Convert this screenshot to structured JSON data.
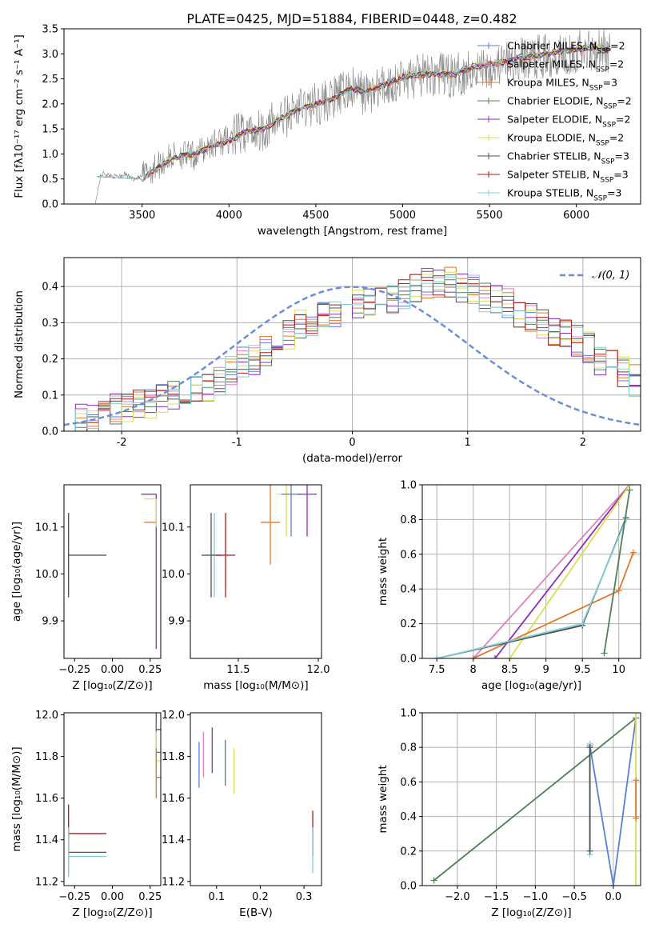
{
  "figure": {
    "title": "PLATE=0425, MJD=51884, FIBERID=0448, z=0.482"
  },
  "colors": {
    "c_miles": "#5a7fd6",
    "s_miles": "#e080c0",
    "k_miles": "#e07828",
    "c_elodie": "#508058",
    "s_elodie": "#8c2cc0",
    "k_elodie": "#d8e050",
    "c_stelib": "#505050",
    "s_stelib": "#b01818",
    "k_stelib": "#80d0d8",
    "data": "#808080",
    "normal": "#6a8fd8",
    "grid": "#b0b0b0"
  },
  "chart_data": [
    {
      "id": "spectrum",
      "type": "line",
      "title": "PLATE=0425, MJD=51884, FIBERID=0448, z=0.482",
      "xlabel": "wavelength [Angstrom, rest frame]",
      "ylabel": "Flux [fλ10⁻¹⁷ erg cm⁻² s⁻¹ A⁻¹]",
      "xlim": [
        3050,
        6370
      ],
      "ylim": [
        0,
        3.5
      ],
      "xticks": [
        3500,
        4000,
        4500,
        5000,
        5500,
        6000
      ],
      "yticks": [
        0.0,
        0.5,
        1.0,
        1.5,
        2.0,
        2.5,
        3.0,
        3.5
      ],
      "legend_position": "top-right",
      "data_series": {
        "name": "data",
        "x": [
          3230,
          3260,
          3280,
          3300,
          3350,
          3400,
          3450,
          3500,
          3600,
          3700,
          3800,
          3900,
          4000,
          4100,
          4200,
          4300,
          4400,
          4500,
          4600,
          4700,
          4800,
          4900,
          5000,
          5100,
          5200,
          5300,
          5400,
          5500,
          5600,
          5700,
          5800,
          5900,
          6000,
          6100,
          6200
        ],
        "y": [
          0.0,
          0.55,
          0.62,
          0.58,
          0.55,
          0.6,
          0.5,
          0.55,
          0.8,
          1.0,
          0.95,
          1.2,
          1.3,
          1.45,
          1.5,
          1.7,
          1.9,
          2.0,
          2.1,
          2.3,
          2.2,
          2.35,
          2.5,
          2.55,
          2.6,
          2.55,
          2.7,
          2.75,
          2.8,
          2.9,
          2.95,
          3.0,
          3.05,
          3.1,
          3.05
        ]
      },
      "model_x": [
        3240,
        3500,
        3600,
        3700,
        3800,
        3900,
        4000,
        4100,
        4200,
        4300,
        4400,
        4500,
        4600,
        4700,
        4800,
        4900,
        5000,
        5100,
        5200,
        5300,
        5400,
        5500,
        5600,
        5700,
        5800,
        5900,
        6000,
        6100,
        6200
      ],
      "series": [
        {
          "name": "Chabrier MILES, N_SSP=2",
          "values": [
            0.55,
            0.5,
            0.75,
            0.95,
            1.0,
            1.15,
            1.25,
            1.45,
            1.5,
            1.7,
            1.9,
            2.0,
            2.1,
            2.3,
            2.25,
            2.4,
            2.55,
            2.6,
            2.6,
            2.6,
            2.75,
            2.8,
            2.85,
            2.95,
            3.0,
            3.05,
            3.1,
            3.15,
            3.1
          ]
        },
        {
          "name": "Salpeter MILES, N_SSP=2",
          "values": [
            0.55,
            0.5,
            0.76,
            0.95,
            1.0,
            1.15,
            1.26,
            1.46,
            1.5,
            1.7,
            1.9,
            2.0,
            2.1,
            2.3,
            2.25,
            2.38,
            2.52,
            2.58,
            2.58,
            2.57,
            2.72,
            2.77,
            2.82,
            2.92,
            2.98,
            3.02,
            3.07,
            3.12,
            3.07
          ]
        },
        {
          "name": "Kroupa MILES, N_SSP=3",
          "values": [
            0.55,
            0.5,
            0.74,
            0.94,
            0.99,
            1.14,
            1.24,
            1.44,
            1.49,
            1.69,
            1.89,
            1.99,
            2.09,
            2.29,
            2.24,
            2.37,
            2.51,
            2.57,
            2.57,
            2.56,
            2.71,
            2.76,
            2.81,
            2.91,
            2.97,
            3.01,
            3.06,
            3.11,
            3.06
          ]
        },
        {
          "name": "Chabrier ELODIE, N_SSP=2",
          "values": [
            0.55,
            0.5,
            0.76,
            0.95,
            1.0,
            1.15,
            1.25,
            1.45,
            1.5,
            1.7,
            1.9,
            2.0,
            2.1,
            2.3,
            2.25,
            2.4,
            2.55,
            2.6,
            2.6,
            2.6,
            2.75,
            2.8,
            2.85,
            2.95,
            3.0,
            3.05,
            3.1,
            3.15,
            3.1
          ]
        },
        {
          "name": "Salpeter ELODIE, N_SSP=2",
          "values": [
            0.55,
            0.5,
            0.77,
            0.96,
            1.01,
            1.16,
            1.26,
            1.46,
            1.51,
            1.71,
            1.91,
            2.01,
            2.11,
            2.31,
            2.26,
            2.41,
            2.56,
            2.61,
            2.61,
            2.61,
            2.76,
            2.81,
            2.86,
            2.96,
            3.01,
            3.06,
            3.11,
            3.16,
            3.11
          ]
        },
        {
          "name": "Kroupa ELODIE, N_SSP=2",
          "values": [
            0.55,
            0.5,
            0.78,
            0.97,
            1.02,
            1.17,
            1.27,
            1.47,
            1.52,
            1.72,
            1.92,
            2.02,
            2.12,
            2.32,
            2.27,
            2.42,
            2.57,
            2.62,
            2.62,
            2.62,
            2.77,
            2.82,
            2.87,
            2.97,
            3.02,
            3.07,
            3.12,
            3.17,
            3.12
          ]
        },
        {
          "name": "Chabrier STELIB, N_SSP=3",
          "values": [
            0.55,
            0.5,
            0.75,
            0.95,
            1.0,
            1.15,
            1.25,
            1.45,
            1.5,
            1.7,
            1.9,
            2.0,
            2.1,
            2.3,
            2.25,
            2.38,
            2.53,
            2.58,
            2.58,
            2.58,
            2.73,
            2.78,
            2.83,
            2.93,
            2.98,
            3.03,
            3.08,
            3.13,
            3.08
          ]
        },
        {
          "name": "Salpeter STELIB, N_SSP=3",
          "values": [
            0.55,
            0.5,
            0.75,
            0.95,
            1.0,
            1.15,
            1.25,
            1.45,
            1.5,
            1.7,
            1.9,
            2.0,
            2.1,
            2.3,
            2.25,
            2.38,
            2.53,
            2.58,
            2.58,
            2.58,
            2.73,
            2.78,
            2.83,
            2.93,
            2.98,
            3.03,
            3.08,
            3.13,
            3.08
          ]
        },
        {
          "name": "Kroupa STELIB, N_SSP=3",
          "values": [
            0.55,
            0.5,
            0.75,
            0.95,
            1.0,
            1.15,
            1.25,
            1.45,
            1.5,
            1.7,
            1.9,
            2.0,
            2.1,
            2.3,
            2.25,
            2.38,
            2.53,
            2.58,
            2.58,
            2.58,
            2.73,
            2.78,
            2.83,
            2.93,
            2.98,
            3.03,
            3.08,
            3.13,
            3.08
          ]
        }
      ]
    },
    {
      "id": "residuals",
      "type": "bar",
      "xlabel": "(data-model)/error",
      "ylabel": "Normed distribution",
      "xlim": [
        -2.5,
        2.5
      ],
      "ylim": [
        0,
        0.48
      ],
      "xticks": [
        -2,
        -1,
        0,
        1,
        2
      ],
      "yticks": [
        0.0,
        0.1,
        0.2,
        0.3,
        0.4
      ],
      "grid": true,
      "legend_position": "top-right",
      "reference_curve": {
        "name": "𝒩(0, 1)",
        "mean": 0,
        "sigma": 1
      },
      "bin_width": 0.1,
      "bin_start": -2.5,
      "histogram_values": [
        0.02,
        0.03,
        0.04,
        0.05,
        0.06,
        0.06,
        0.07,
        0.08,
        0.09,
        0.1,
        0.1,
        0.11,
        0.12,
        0.14,
        0.17,
        0.19,
        0.2,
        0.22,
        0.25,
        0.27,
        0.3,
        0.3,
        0.32,
        0.33,
        0.34,
        0.35,
        0.35,
        0.36,
        0.37,
        0.38,
        0.4,
        0.41,
        0.41,
        0.41,
        0.4,
        0.39,
        0.37,
        0.36,
        0.35,
        0.33,
        0.31,
        0.3,
        0.28,
        0.27,
        0.25,
        0.23,
        0.2,
        0.18,
        0.16,
        0.14,
        0.12,
        0.11,
        0.09,
        0.08,
        0.07,
        0.06,
        0.05,
        0.05,
        0.04,
        0.04
      ]
    },
    {
      "id": "age-vs-Z",
      "type": "scatter",
      "xlabel": "Z [log₁₀(Z/Z⊙)]",
      "ylabel": "age  [log₁₀(age/yr)]",
      "xlim": [
        -0.32,
        0.32
      ],
      "ylim": [
        9.82,
        10.19
      ],
      "xticks": [
        -0.25,
        0.0,
        0.25
      ],
      "xticklabels": [
        "−0.25",
        "0.00",
        "0.25"
      ],
      "yticks": [
        9.9,
        10.0,
        10.1
      ],
      "points": [
        {
          "x": -0.29,
          "y": 10.04,
          "xerr": [
            0,
            0.25
          ],
          "yerr": [
            0.09,
            0.09
          ],
          "c": "k_stelib"
        },
        {
          "x": -0.29,
          "y": 10.04,
          "xerr": [
            0,
            0.25
          ],
          "yerr": [
            0.09,
            0.09
          ],
          "c": "c_stelib"
        },
        {
          "x": 0.29,
          "y": 10.17,
          "xerr": [
            0.1,
            0
          ],
          "yerr": [
            0.0,
            0.0
          ],
          "c": "s_miles"
        },
        {
          "x": 0.29,
          "y": 10.11,
          "xerr": [
            0.08,
            0
          ],
          "yerr": [
            0.0,
            0.0
          ],
          "c": "k_miles"
        },
        {
          "x": 0.29,
          "y": 10.17,
          "xerr": [
            0.1,
            0
          ],
          "yerr": [
            0.33,
            0.0
          ],
          "c": "s_elodie"
        },
        {
          "x": 0.29,
          "y": 10.16,
          "xerr": [
            0.08,
            0
          ],
          "yerr": [
            0.06,
            0.0
          ],
          "c": "k_elodie"
        }
      ]
    },
    {
      "id": "age-vs-mass",
      "type": "scatter",
      "xlabel": "mass [log₁₀(M/M⊙)]",
      "xlim": [
        11.2,
        12.02
      ],
      "ylim": [
        9.82,
        10.19
      ],
      "xticks": [
        11.5,
        12.0
      ],
      "xticklabels": [
        "11.5",
        "12.0"
      ],
      "yticks": [
        9.9,
        10.0,
        10.1
      ],
      "points": [
        {
          "x": 11.35,
          "y": 10.04,
          "c": "k_stelib"
        },
        {
          "x": 11.33,
          "y": 10.04,
          "c": "c_stelib"
        },
        {
          "x": 11.42,
          "y": 10.04,
          "c": "s_stelib"
        },
        {
          "x": 11.7,
          "y": 10.11,
          "c": "k_miles"
        },
        {
          "x": 11.8,
          "y": 10.17,
          "c": "k_elodie"
        },
        {
          "x": 11.83,
          "y": 10.17,
          "c": "c_miles"
        },
        {
          "x": 11.93,
          "y": 10.17,
          "c": "s_elodie"
        }
      ]
    },
    {
      "id": "weight-vs-age",
      "type": "line",
      "xlabel": "age  [log₁₀(age/yr)]",
      "ylabel": "mass weight",
      "xlim": [
        7.3,
        10.3
      ],
      "ylim": [
        0,
        1
      ],
      "xticks": [
        7.5,
        8.0,
        8.5,
        9.0,
        9.5,
        10.0
      ],
      "yticks": [
        0.0,
        0.2,
        0.4,
        0.6,
        0.8,
        1.0
      ],
      "grid": true,
      "series": [
        {
          "c": "s_miles",
          "x": [
            8.0,
            10.15
          ],
          "y": [
            0.0,
            1.0
          ]
        },
        {
          "c": "s_elodie",
          "x": [
            8.3,
            10.15
          ],
          "y": [
            0.0,
            1.0
          ]
        },
        {
          "c": "k_elodie",
          "x": [
            8.5,
            10.15
          ],
          "y": [
            0.0,
            1.0
          ]
        },
        {
          "c": "k_miles",
          "x": [
            8.0,
            10.0,
            10.2
          ],
          "y": [
            0.0,
            0.39,
            0.61
          ]
        },
        {
          "c": "c_stelib",
          "x": [
            7.5,
            9.5,
            10.1
          ],
          "y": [
            0.0,
            0.19,
            0.81
          ]
        },
        {
          "c": "k_stelib",
          "x": [
            7.5,
            9.5,
            10.1
          ],
          "y": [
            0.0,
            0.2,
            0.8
          ]
        },
        {
          "c": "c_elodie",
          "x": [
            9.8,
            10.15
          ],
          "y": [
            0.03,
            0.97
          ]
        }
      ]
    },
    {
      "id": "mass-vs-Z",
      "type": "scatter",
      "xlabel": "Z [log₁₀(Z/Z⊙)]",
      "ylabel": "mass [log₁₀(M/M⊙)]",
      "xlim": [
        -0.32,
        0.32
      ],
      "ylim": [
        11.18,
        12.01
      ],
      "xticks": [
        -0.25,
        0.0,
        0.25
      ],
      "xticklabels": [
        "−0.25",
        "0.00",
        "0.25"
      ],
      "yticks": [
        11.2,
        11.4,
        11.6,
        11.8,
        12.0
      ],
      "points": [
        {
          "x": -0.29,
          "y": 11.43,
          "c": "s_stelib"
        },
        {
          "x": -0.29,
          "y": 11.34,
          "c": "c_stelib"
        },
        {
          "x": -0.29,
          "y": 11.32,
          "c": "k_stelib"
        },
        {
          "x": 0.29,
          "y": 11.93,
          "c": "s_elodie"
        },
        {
          "x": 0.29,
          "y": 11.82,
          "c": "c_elodie"
        },
        {
          "x": 0.29,
          "y": 11.78,
          "c": "k_elodie"
        },
        {
          "x": 0.29,
          "y": 11.7,
          "c": "k_miles"
        }
      ]
    },
    {
      "id": "mass-vs-ebv",
      "type": "scatter",
      "xlabel": "E(B-V)",
      "xlim": [
        0.04,
        0.34
      ],
      "ylim": [
        11.18,
        12.01
      ],
      "xticks": [
        0.1,
        0.2,
        0.3
      ],
      "xticklabels": [
        "0.1",
        "0.2",
        "0.3"
      ],
      "yticks": [
        11.2,
        11.4,
        11.6,
        11.8,
        12.0
      ],
      "points": [
        {
          "x": 0.06,
          "y": 11.75,
          "c": "c_miles"
        },
        {
          "x": 0.07,
          "y": 11.8,
          "c": "s_miles"
        },
        {
          "x": 0.09,
          "y": 11.82,
          "c": "s_elodie"
        },
        {
          "x": 0.12,
          "y": 11.76,
          "c": "c_elodie"
        },
        {
          "x": 0.14,
          "y": 11.72,
          "c": "k_elodie"
        },
        {
          "x": 0.32,
          "y": 11.42,
          "c": "s_stelib"
        },
        {
          "x": 0.32,
          "y": 11.34,
          "c": "k_stelib"
        }
      ]
    },
    {
      "id": "weight-vs-Z",
      "type": "line",
      "xlabel": "Z [log₁₀(Z/Z⊙)]",
      "ylabel": "mass weight",
      "xlim": [
        -2.45,
        0.35
      ],
      "ylim": [
        0,
        1
      ],
      "xticks": [
        -2.0,
        -1.5,
        -1.0,
        -0.5,
        0.0
      ],
      "xticklabels": [
        "−2.0",
        "−1.5",
        "−1.0",
        "−0.5",
        "0.0"
      ],
      "yticks": [
        0.0,
        0.2,
        0.4,
        0.6,
        0.8,
        1.0
      ],
      "grid": true,
      "series": [
        {
          "c": "c_elodie",
          "x": [
            -2.3,
            0.29
          ],
          "y": [
            0.03,
            0.97
          ]
        },
        {
          "c": "c_miles",
          "x": [
            -0.3,
            0.0,
            0.29
          ],
          "y": [
            0.81,
            0.0,
            0.97
          ]
        },
        {
          "c": "k_stelib",
          "x": [
            -0.3,
            -0.3
          ],
          "y": [
            0.18,
            0.82
          ]
        },
        {
          "c": "c_stelib",
          "x": [
            -0.3,
            -0.3
          ],
          "y": [
            0.2,
            0.8
          ]
        },
        {
          "c": "k_elodie",
          "x": [
            0.29,
            0.29
          ],
          "y": [
            0.0,
            1.0
          ]
        },
        {
          "c": "k_miles",
          "x": [
            0.29,
            0.29
          ],
          "y": [
            0.39,
            0.61
          ]
        }
      ]
    }
  ],
  "legend": [
    {
      "label": "Chabrier MILES, N",
      "sub": "SSP",
      "tail": "=2",
      "c": "c_miles"
    },
    {
      "label": "Salpeter MILES, N",
      "sub": "SSP",
      "tail": "=2",
      "c": "s_miles"
    },
    {
      "label": "Kroupa MILES, N",
      "sub": "SSP",
      "tail": "=3",
      "c": "k_miles"
    },
    {
      "label": "Chabrier ELODIE, N",
      "sub": "SSP",
      "tail": "=2",
      "c": "c_elodie"
    },
    {
      "label": "Salpeter ELODIE, N",
      "sub": "SSP",
      "tail": "=2",
      "c": "s_elodie"
    },
    {
      "label": "Kroupa ELODIE, N",
      "sub": "SSP",
      "tail": "=2",
      "c": "k_elodie"
    },
    {
      "label": "Chabrier STELIB, N",
      "sub": "SSP",
      "tail": "=3",
      "c": "c_stelib"
    },
    {
      "label": "Salpeter STELIB, N",
      "sub": "SSP",
      "tail": "=3",
      "c": "s_stelib"
    },
    {
      "label": "Kroupa STELIB, N",
      "sub": "SSP",
      "tail": "=3",
      "c": "k_stelib"
    }
  ]
}
